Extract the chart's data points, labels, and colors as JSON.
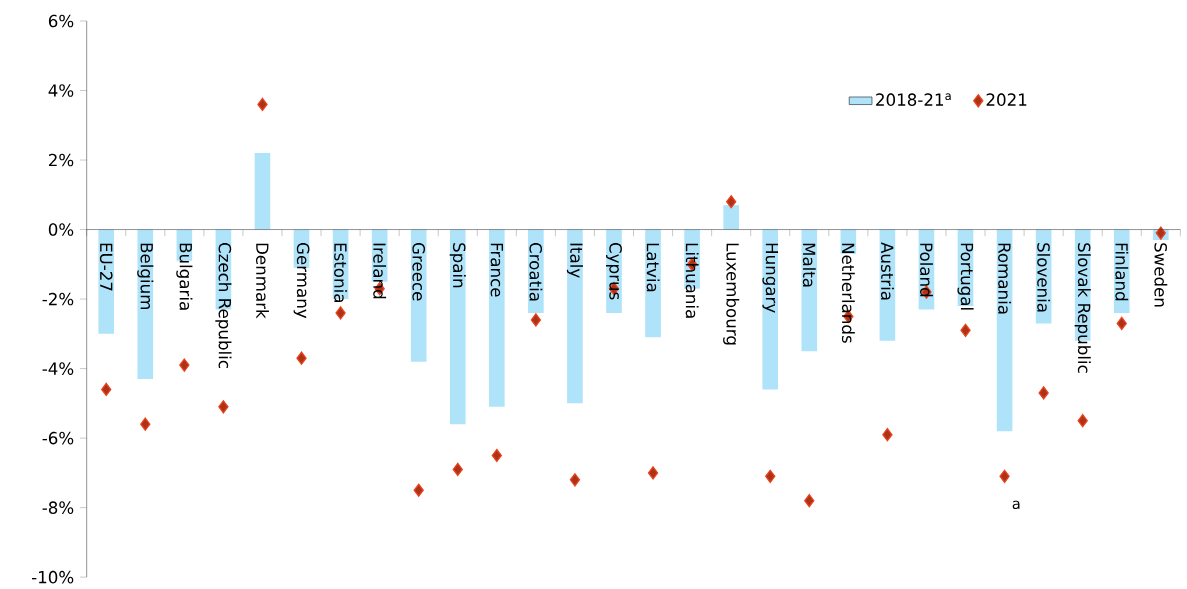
{
  "chart_data": {
    "type": "bar",
    "categories": [
      "EU-27",
      "Belgium",
      "Bulgaria",
      "Czech Republic",
      "Denmark",
      "Germany",
      "Estonia",
      "Ireland",
      "Greece",
      "Spain",
      "France",
      "Croatia",
      "Italy",
      "Cyprus",
      "Latvia",
      "Lithuania",
      "Luxembourg",
      "Hungary",
      "Malta",
      "Netherlands",
      "Austria",
      "Poland",
      "Portugal",
      "Romania",
      "Slovenia",
      "Slovak Republic",
      "Finland",
      "Sweden"
    ],
    "series": [
      {
        "name": "2018-21$^{a}$",
        "color": "#aee3fa",
        "values": [
          -3.0,
          -4.3,
          -0.9,
          -2.3,
          2.2,
          -1.1,
          -2.0,
          -1.5,
          -3.8,
          -5.6,
          -5.1,
          -2.4,
          -5.0,
          -2.4,
          -3.1,
          -1.7,
          0.7,
          -4.6,
          -3.5,
          -0.7,
          -3.2,
          -2.3,
          -2.2,
          -5.8,
          -2.7,
          -3.2,
          -2.4,
          -0.3
        ]
      },
      {
        "name": "2021",
        "type": "scatter",
        "marker": "diamond",
        "color": "#e8431e",
        "values": [
          -4.6,
          -5.6,
          -3.9,
          -5.1,
          3.6,
          -3.7,
          -2.4,
          -1.7,
          -7.5,
          -6.9,
          -6.5,
          -2.6,
          -7.2,
          -1.7,
          -7.0,
          -1.0,
          0.8,
          -7.1,
          -7.8,
          -2.5,
          -5.9,
          -1.8,
          -2.9,
          -7.1,
          -4.7,
          -5.5,
          -2.7,
          -0.1
        ]
      }
    ],
    "ylim": [
      -10,
      6
    ],
    "yticks": [
      {
        "value": -10,
        "label": "-10%"
      },
      {
        "value": -8,
        "label": "-8%"
      },
      {
        "value": -6,
        "label": "-6%"
      },
      {
        "value": -4,
        "label": "-4%"
      },
      {
        "value": -2,
        "label": "-2%"
      },
      {
        "value": 0,
        "label": "0%"
      },
      {
        "value": 2,
        "label": "2%"
      },
      {
        "value": 4,
        "label": "4%"
      },
      {
        "value": 6,
        "label": "6%"
      }
    ],
    "legend": "top right",
    "grid": false,
    "annotations": [
      "a"
    ]
  }
}
